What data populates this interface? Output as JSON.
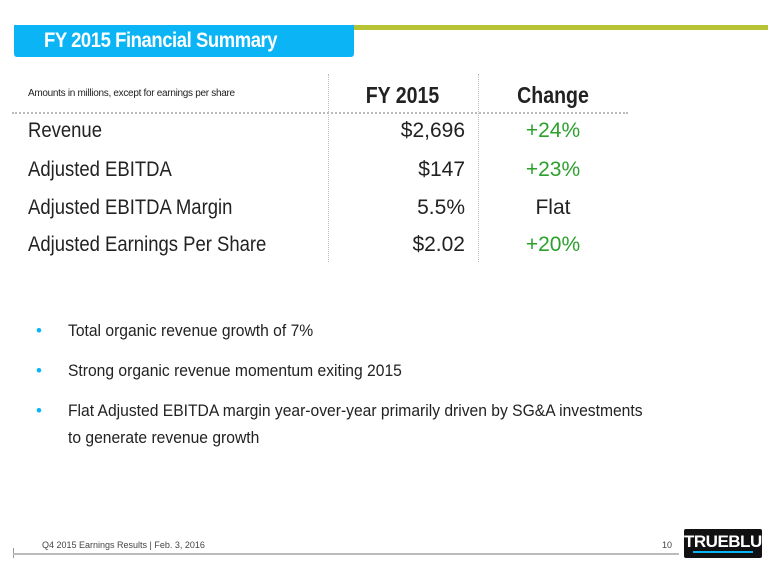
{
  "header": {
    "title": "FY 2015 Financial Summary"
  },
  "table": {
    "note": "Amounts in millions, except for earnings per share",
    "col_fy": "FY 2015",
    "col_change": "Change",
    "rows": [
      {
        "label": "Revenue",
        "value": "$2,696",
        "change": "+24%",
        "change_color": "#2ca02c"
      },
      {
        "label": "Adjusted EBITDA",
        "value": "$147",
        "change": "+23%",
        "change_color": "#2ca02c"
      },
      {
        "label": "Adjusted EBITDA Margin",
        "value": "5.5%",
        "change": "Flat",
        "change_color": "#222222"
      },
      {
        "label": "Adjusted Earnings Per Share",
        "value": "$2.02",
        "change": "+20%",
        "change_color": "#2ca02c"
      }
    ]
  },
  "bullets": [
    "Total organic revenue growth of 7%",
    "Strong organic revenue momentum exiting 2015",
    "Flat Adjusted EBITDA margin year-over-year primarily driven by SG&A investments",
    "to generate revenue growth"
  ],
  "bullet_char": "•",
  "footer": {
    "text": "Q4 2015 Earnings Results | Feb. 3, 2016",
    "page": "10",
    "logo": "TRUEBLUE"
  }
}
